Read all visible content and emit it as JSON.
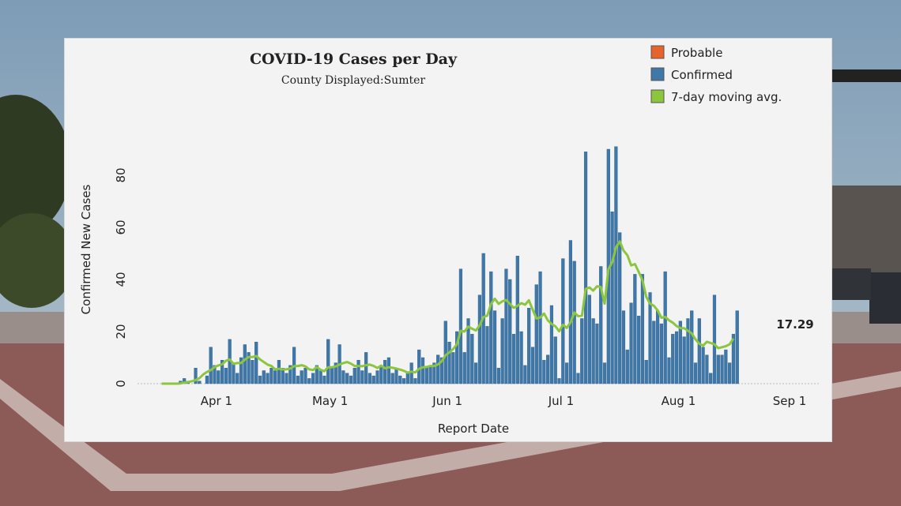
{
  "chart_data": {
    "type": "bar",
    "title": "COVID-19 Cases per Day",
    "subtitle": "County Displayed:Sumter",
    "xlabel": "Report Date",
    "ylabel": "Confirmed New Cases",
    "ylim": [
      0,
      95
    ],
    "yticks": [
      "0",
      "20",
      "40",
      "60",
      "80"
    ],
    "xticks": [
      "Apr 1",
      "May 1",
      "Jun 1",
      "Jul 1",
      "Aug 1",
      "Sep 1"
    ],
    "x_range": [
      "2020-03-17",
      "2020-09-01"
    ],
    "legend": [
      {
        "name": "Probable",
        "color": "#e8622c"
      },
      {
        "name": "Confirmed",
        "color": "#3f78a8"
      },
      {
        "name": "7-day moving avg.",
        "color": "#8cc63f"
      }
    ],
    "legend_position": "top-right",
    "last_value_label": "17.29",
    "series": [
      {
        "name": "Confirmed",
        "color": "#3f78a8",
        "start_date": "2020-03-17",
        "values": [
          0,
          0,
          0,
          0,
          0,
          1,
          2,
          1,
          0,
          6,
          1,
          0,
          3,
          14,
          7,
          5,
          9,
          6,
          17,
          8,
          4,
          10,
          15,
          12,
          9,
          16,
          3,
          5,
          4,
          6,
          5,
          9,
          6,
          4,
          7,
          14,
          3,
          5,
          6,
          2,
          4,
          7,
          5,
          3,
          17,
          6,
          8,
          15,
          5,
          4,
          3,
          6,
          9,
          5,
          12,
          4,
          3,
          5,
          7,
          9,
          10,
          4,
          6,
          3,
          2,
          4,
          8,
          2,
          13,
          10,
          6,
          7,
          8,
          11,
          10,
          24,
          16,
          12,
          20,
          44,
          12,
          25,
          19,
          8,
          34,
          50,
          22,
          43,
          28,
          6,
          25,
          44,
          40,
          19,
          49,
          20,
          7,
          29,
          14,
          38,
          43,
          9,
          11,
          30,
          18,
          2,
          48,
          8,
          55,
          47,
          4,
          25,
          89,
          34,
          25,
          23,
          45,
          8,
          90,
          66,
          91,
          58,
          28,
          13,
          31,
          42,
          26,
          42,
          9,
          35,
          24,
          28,
          23,
          43,
          10,
          19,
          20,
          24,
          18,
          25,
          28,
          8,
          25,
          14,
          11,
          4,
          34,
          11,
          11,
          13,
          8,
          19,
          28
        ]
      },
      {
        "name": "7-day moving avg.",
        "color": "#8cc63f",
        "start_date": "2020-03-17",
        "values": [
          0,
          0,
          0,
          0,
          0,
          0.1,
          0.4,
          0.6,
          0.9,
          1.4,
          2.1,
          3.5,
          4.5,
          5.2,
          6.3,
          7,
          7.4,
          8.8,
          9.3,
          7.6,
          7.9,
          7.9,
          9.2,
          10.2,
          10.2,
          10.6,
          9.3,
          8.3,
          7.3,
          6.8,
          5.5,
          5.7,
          5.5,
          5.5,
          5.8,
          6.7,
          6.8,
          7.1,
          6.6,
          5.5,
          5.2,
          6.4,
          5.3,
          4.8,
          6.3,
          6.3,
          6.6,
          7.3,
          7.9,
          8.3,
          7.7,
          6.8,
          6.8,
          6.7,
          7.1,
          7.3,
          6.8,
          6,
          6.9,
          5.9,
          6.3,
          6.1,
          5.8,
          5.4,
          4.9,
          4.2,
          4.6,
          4.3,
          5.7,
          6.3,
          6.4,
          6.8,
          6.8,
          7.4,
          8.6,
          10.9,
          12,
          13.3,
          15.1,
          20.3,
          20,
          21.9,
          21.1,
          20.4,
          22.4,
          25.6,
          26.1,
          30.6,
          32.6,
          30.6,
          31.6,
          32.1,
          30.6,
          29.1,
          29.9,
          30.9,
          30.3,
          32,
          28.4,
          25,
          25.4,
          26.9,
          24.3,
          22.9,
          22,
          20.1,
          22.6,
          21.4,
          23.5,
          27.3,
          25.9,
          26.1,
          36.4,
          36.9,
          35.7,
          37.4,
          37.1,
          30.7,
          43.9,
          46.6,
          52.3,
          54.6,
          51.1,
          49.3,
          45.4,
          45.9,
          42.9,
          39.7,
          33.3,
          30.7,
          29.9,
          28.1,
          25.3,
          25.6,
          24.3,
          23.4,
          22.1,
          21.3,
          21.3,
          20.3,
          19.3,
          17,
          15.3,
          14.6,
          16.1,
          15.6,
          15.1,
          13.6,
          14,
          14.4,
          15.1,
          17.3
        ]
      }
    ],
    "probable_present": true
  }
}
